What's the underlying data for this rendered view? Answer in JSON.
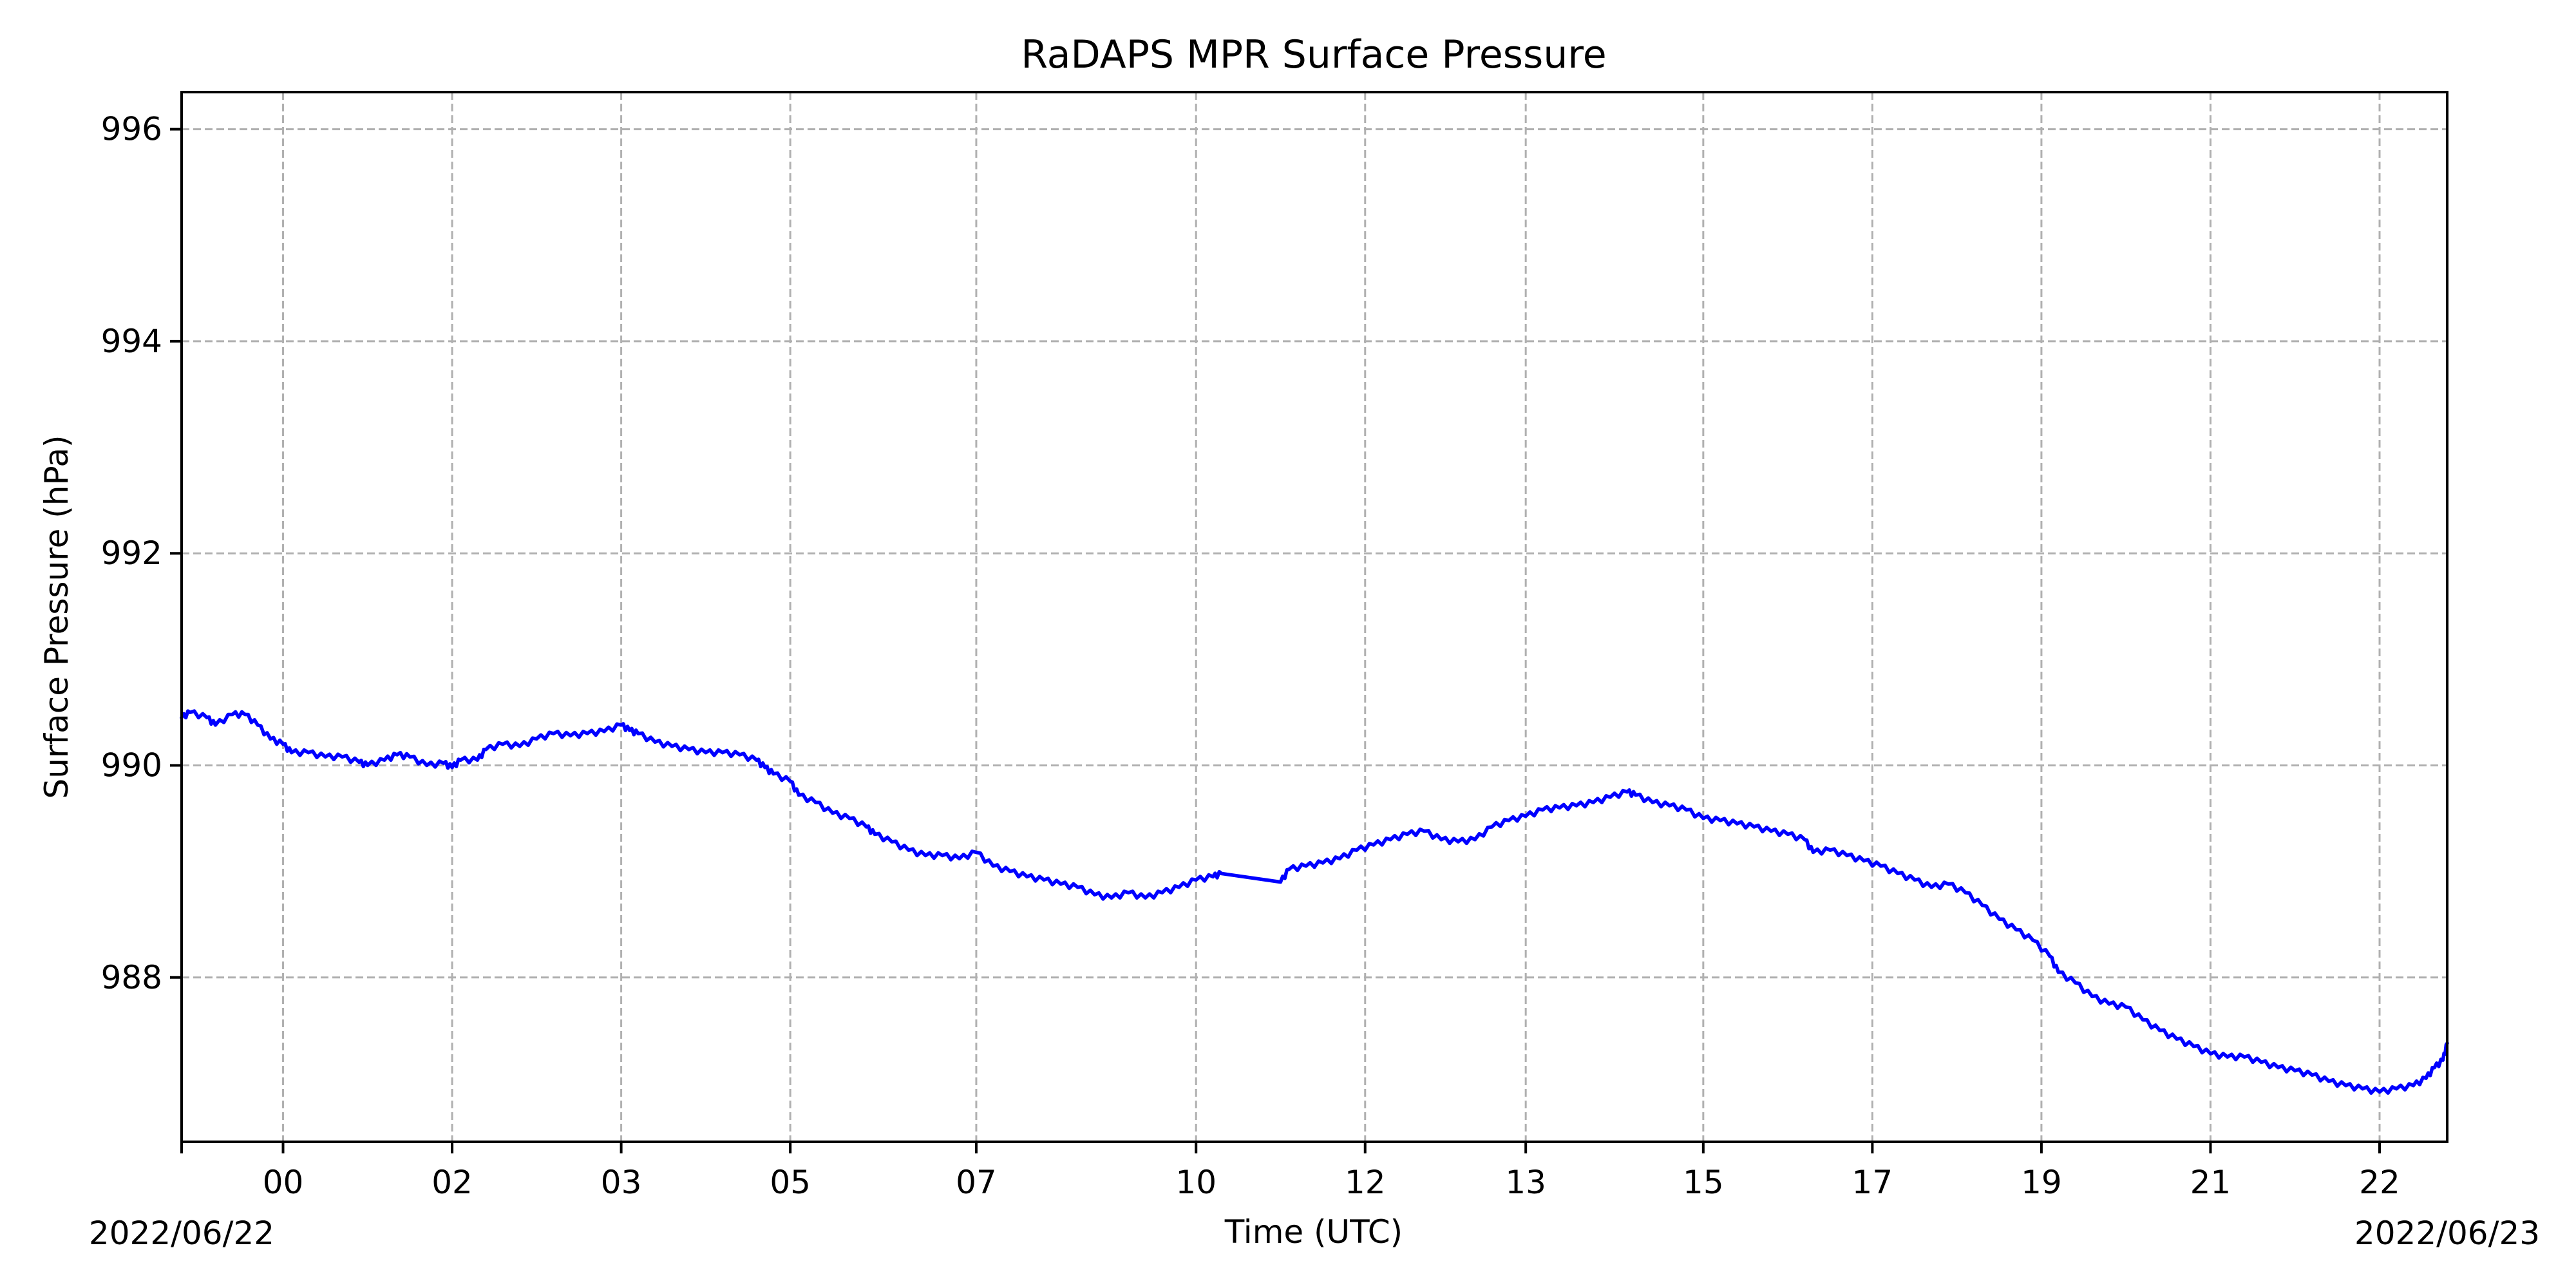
{
  "chart_data": {
    "type": "line",
    "title": "RaDAPS MPR Surface Pressure",
    "xlabel": "Time (UTC)",
    "ylabel": "Surface Pressure (hPa)",
    "x_unit": "hours",
    "xlim": [
      -1.2,
      25.6
    ],
    "ylim": [
      986.45,
      996.35
    ],
    "grid": true,
    "date_labels": {
      "start": "2022/06/22",
      "end": "2022/06/23"
    },
    "x_ticks": [
      {
        "x": 0.0,
        "label": "00"
      },
      {
        "x": 2.0,
        "label": "02"
      },
      {
        "x": 4.0,
        "label": "03"
      },
      {
        "x": 6.0,
        "label": "05"
      },
      {
        "x": 8.2,
        "label": "07"
      },
      {
        "x": 10.8,
        "label": "10"
      },
      {
        "x": 12.8,
        "label": "12"
      },
      {
        "x": 14.7,
        "label": "13"
      },
      {
        "x": 16.8,
        "label": "15"
      },
      {
        "x": 18.8,
        "label": "17"
      },
      {
        "x": 20.8,
        "label": "19"
      },
      {
        "x": 22.8,
        "label": "21"
      },
      {
        "x": 24.8,
        "label": "22"
      }
    ],
    "y_ticks": [
      {
        "y": 988,
        "label": "988"
      },
      {
        "y": 990,
        "label": "990"
      },
      {
        "y": 992,
        "label": "992"
      },
      {
        "y": 994,
        "label": "994"
      },
      {
        "y": 996,
        "label": "996"
      }
    ],
    "series": [
      {
        "color": "#0000ff",
        "points": [
          [
            -1.2,
            990.45
          ],
          [
            -1.1,
            990.5
          ],
          [
            -0.9,
            990.45
          ],
          [
            -0.8,
            990.38
          ],
          [
            -0.6,
            990.48
          ],
          [
            -0.45,
            990.48
          ],
          [
            -0.3,
            990.38
          ],
          [
            -0.15,
            990.25
          ],
          [
            0.0,
            990.2
          ],
          [
            0.1,
            990.12
          ],
          [
            0.3,
            990.12
          ],
          [
            0.5,
            990.08
          ],
          [
            0.7,
            990.08
          ],
          [
            0.9,
            990.03
          ],
          [
            1.0,
            990.0
          ],
          [
            1.2,
            990.05
          ],
          [
            1.35,
            990.1
          ],
          [
            1.5,
            990.08
          ],
          [
            1.7,
            990.0
          ],
          [
            1.9,
            990.02
          ],
          [
            2.0,
            989.98
          ],
          [
            2.1,
            990.05
          ],
          [
            2.3,
            990.05
          ],
          [
            2.4,
            990.15
          ],
          [
            2.6,
            990.2
          ],
          [
            2.8,
            990.18
          ],
          [
            3.0,
            990.25
          ],
          [
            3.2,
            990.3
          ],
          [
            3.4,
            990.28
          ],
          [
            3.6,
            990.3
          ],
          [
            3.8,
            990.32
          ],
          [
            4.0,
            990.38
          ],
          [
            4.1,
            990.33
          ],
          [
            4.2,
            990.3
          ],
          [
            4.4,
            990.22
          ],
          [
            4.6,
            990.18
          ],
          [
            4.8,
            990.15
          ],
          [
            5.0,
            990.12
          ],
          [
            5.2,
            990.12
          ],
          [
            5.4,
            990.1
          ],
          [
            5.6,
            990.05
          ],
          [
            5.7,
            989.98
          ],
          [
            5.8,
            989.92
          ],
          [
            6.0,
            989.85
          ],
          [
            6.1,
            989.72
          ],
          [
            6.3,
            989.65
          ],
          [
            6.5,
            989.55
          ],
          [
            6.7,
            989.5
          ],
          [
            6.9,
            989.42
          ],
          [
            7.0,
            989.35
          ],
          [
            7.2,
            989.28
          ],
          [
            7.4,
            989.2
          ],
          [
            7.6,
            989.15
          ],
          [
            7.8,
            989.15
          ],
          [
            8.0,
            989.12
          ],
          [
            8.2,
            989.18
          ],
          [
            8.4,
            989.05
          ],
          [
            8.6,
            989.0
          ],
          [
            8.8,
            988.95
          ],
          [
            9.0,
            988.92
          ],
          [
            9.2,
            988.88
          ],
          [
            9.4,
            988.85
          ],
          [
            9.6,
            988.78
          ],
          [
            9.8,
            988.75
          ],
          [
            10.0,
            988.8
          ],
          [
            10.2,
            988.75
          ],
          [
            10.4,
            988.8
          ],
          [
            10.6,
            988.85
          ],
          [
            10.8,
            988.92
          ],
          [
            11.0,
            988.95
          ],
          [
            11.1,
            988.98
          ],
          [
            11.8,
            988.9
          ],
          [
            11.9,
            989.02
          ],
          [
            12.1,
            989.05
          ],
          [
            12.3,
            989.08
          ],
          [
            12.5,
            989.12
          ],
          [
            12.7,
            989.2
          ],
          [
            12.9,
            989.25
          ],
          [
            13.1,
            989.3
          ],
          [
            13.3,
            989.35
          ],
          [
            13.5,
            989.38
          ],
          [
            13.7,
            989.3
          ],
          [
            13.9,
            989.28
          ],
          [
            14.1,
            989.3
          ],
          [
            14.3,
            989.42
          ],
          [
            14.5,
            989.48
          ],
          [
            14.7,
            989.52
          ],
          [
            14.9,
            989.58
          ],
          [
            15.1,
            989.6
          ],
          [
            15.3,
            989.62
          ],
          [
            15.5,
            989.65
          ],
          [
            15.7,
            989.7
          ],
          [
            15.9,
            989.75
          ],
          [
            16.0,
            989.72
          ],
          [
            16.2,
            989.65
          ],
          [
            16.4,
            989.62
          ],
          [
            16.6,
            989.58
          ],
          [
            16.8,
            989.5
          ],
          [
            17.0,
            989.48
          ],
          [
            17.2,
            989.45
          ],
          [
            17.4,
            989.42
          ],
          [
            17.6,
            989.38
          ],
          [
            17.8,
            989.35
          ],
          [
            18.0,
            989.3
          ],
          [
            18.1,
            989.18
          ],
          [
            18.3,
            989.2
          ],
          [
            18.5,
            989.15
          ],
          [
            18.7,
            989.1
          ],
          [
            18.9,
            989.05
          ],
          [
            19.1,
            988.98
          ],
          [
            19.3,
            988.92
          ],
          [
            19.5,
            988.85
          ],
          [
            19.7,
            988.88
          ],
          [
            19.9,
            988.8
          ],
          [
            20.1,
            988.68
          ],
          [
            20.3,
            988.55
          ],
          [
            20.5,
            988.45
          ],
          [
            20.7,
            988.35
          ],
          [
            20.9,
            988.2
          ],
          [
            21.0,
            988.05
          ],
          [
            21.2,
            987.95
          ],
          [
            21.4,
            987.82
          ],
          [
            21.6,
            987.75
          ],
          [
            21.8,
            987.72
          ],
          [
            22.0,
            987.6
          ],
          [
            22.2,
            987.5
          ],
          [
            22.4,
            987.42
          ],
          [
            22.6,
            987.35
          ],
          [
            22.8,
            987.28
          ],
          [
            23.0,
            987.25
          ],
          [
            23.2,
            987.25
          ],
          [
            23.4,
            987.2
          ],
          [
            23.6,
            987.15
          ],
          [
            23.8,
            987.12
          ],
          [
            24.0,
            987.08
          ],
          [
            24.2,
            987.02
          ],
          [
            24.4,
            986.98
          ],
          [
            24.6,
            986.95
          ],
          [
            24.8,
            986.92
          ],
          [
            25.0,
            986.95
          ],
          [
            25.2,
            986.98
          ],
          [
            25.35,
            987.05
          ],
          [
            25.45,
            987.15
          ],
          [
            25.55,
            987.22
          ],
          [
            25.6,
            987.38
          ]
        ]
      }
    ]
  }
}
